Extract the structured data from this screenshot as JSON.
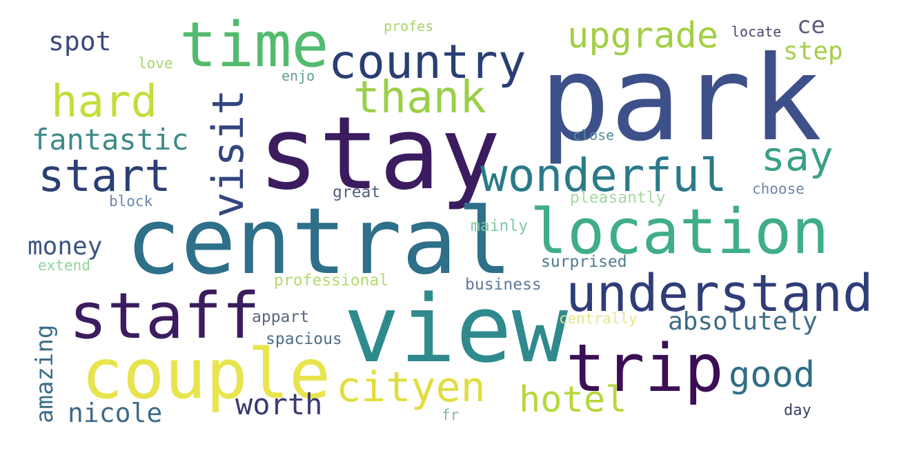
{
  "word_cloud": {
    "background": "#ffffff",
    "words": [
      {
        "text": "park",
        "color": "#3e5089",
        "orientation": "horizontal"
      },
      {
        "text": "stay",
        "color": "#3b1c5f",
        "orientation": "horizontal"
      },
      {
        "text": "central",
        "color": "#2e6f89",
        "orientation": "horizontal"
      },
      {
        "text": "view",
        "color": "#2f8a8e",
        "orientation": "horizontal"
      },
      {
        "text": "time",
        "color": "#53bb6e",
        "orientation": "horizontal"
      },
      {
        "text": "country",
        "color": "#2a3e73",
        "orientation": "horizontal"
      },
      {
        "text": "location",
        "color": "#3fae86",
        "orientation": "horizontal"
      },
      {
        "text": "staff",
        "color": "#3b1c5f",
        "orientation": "horizontal"
      },
      {
        "text": "couple",
        "color": "#e7e44d",
        "orientation": "horizontal"
      },
      {
        "text": "trip",
        "color": "#3a0f55",
        "orientation": "horizontal"
      },
      {
        "text": "understand",
        "color": "#2f3d78",
        "orientation": "horizontal"
      },
      {
        "text": "wonderful",
        "color": "#2a7a8a",
        "orientation": "horizontal"
      },
      {
        "text": "visit",
        "color": "#33457f",
        "orientation": "vertical"
      },
      {
        "text": "thank",
        "color": "#9bcf4a",
        "orientation": "horizontal"
      },
      {
        "text": "upgrade",
        "color": "#a3cf45",
        "orientation": "horizontal"
      },
      {
        "text": "hard",
        "color": "#c6dc3a",
        "orientation": "horizontal"
      },
      {
        "text": "start",
        "color": "#2b3f73",
        "orientation": "horizontal"
      },
      {
        "text": "cityen",
        "color": "#e0de3f",
        "orientation": "horizontal"
      },
      {
        "text": "hotel",
        "color": "#b5d73c",
        "orientation": "horizontal"
      },
      {
        "text": "good",
        "color": "#2f6e86",
        "orientation": "horizontal"
      },
      {
        "text": "say",
        "color": "#3b9f86",
        "orientation": "horizontal"
      },
      {
        "text": "absolutely",
        "color": "#3b6c87",
        "orientation": "horizontal"
      },
      {
        "text": "fantastic",
        "color": "#3f8a87",
        "orientation": "horizontal"
      },
      {
        "text": "money",
        "color": "#3c5583",
        "orientation": "horizontal"
      },
      {
        "text": "worth",
        "color": "#3a3a72",
        "orientation": "horizontal"
      },
      {
        "text": "nicole",
        "color": "#3d6a89",
        "orientation": "horizontal"
      },
      {
        "text": "amazing",
        "color": "#3d6d88",
        "orientation": "vertical"
      },
      {
        "text": "spot",
        "color": "#3c4a7a",
        "orientation": "horizontal"
      },
      {
        "text": "step",
        "color": "#a5cf48",
        "orientation": "horizontal"
      },
      {
        "text": "ce",
        "color": "#5c5c7f",
        "orientation": "horizontal"
      },
      {
        "text": "locate",
        "color": "#454a6c",
        "orientation": "horizontal"
      },
      {
        "text": "profes",
        "color": "#a7d36b",
        "orientation": "horizontal"
      },
      {
        "text": "love",
        "color": "#a7d36b",
        "orientation": "horizontal"
      },
      {
        "text": "enjo",
        "color": "#5ea096",
        "orientation": "horizontal"
      },
      {
        "text": "close",
        "color": "#4f8f99",
        "orientation": "horizontal"
      },
      {
        "text": "great",
        "color": "#525d7e",
        "orientation": "horizontal"
      },
      {
        "text": "block",
        "color": "#6d86a8",
        "orientation": "horizontal"
      },
      {
        "text": "choose",
        "color": "#6d86a8",
        "orientation": "horizontal"
      },
      {
        "text": "pleasantly",
        "color": "#a7d8a2",
        "orientation": "horizontal"
      },
      {
        "text": "mainly",
        "color": "#7fcaa6",
        "orientation": "horizontal"
      },
      {
        "text": "surprised",
        "color": "#4e7b8f",
        "orientation": "horizontal"
      },
      {
        "text": "extend",
        "color": "#8fd29a",
        "orientation": "horizontal"
      },
      {
        "text": "professional",
        "color": "#b2db6c",
        "orientation": "horizontal"
      },
      {
        "text": "business",
        "color": "#5d7898",
        "orientation": "horizontal"
      },
      {
        "text": "appart",
        "color": "#5b6480",
        "orientation": "horizontal"
      },
      {
        "text": "centrally",
        "color": "#e7e58a",
        "orientation": "horizontal"
      },
      {
        "text": "spacious",
        "color": "#4d6c88",
        "orientation": "horizontal"
      },
      {
        "text": "fr",
        "color": "#7fb8b0",
        "orientation": "horizontal"
      },
      {
        "text": "day",
        "color": "#3b3f66",
        "orientation": "horizontal"
      }
    ]
  }
}
